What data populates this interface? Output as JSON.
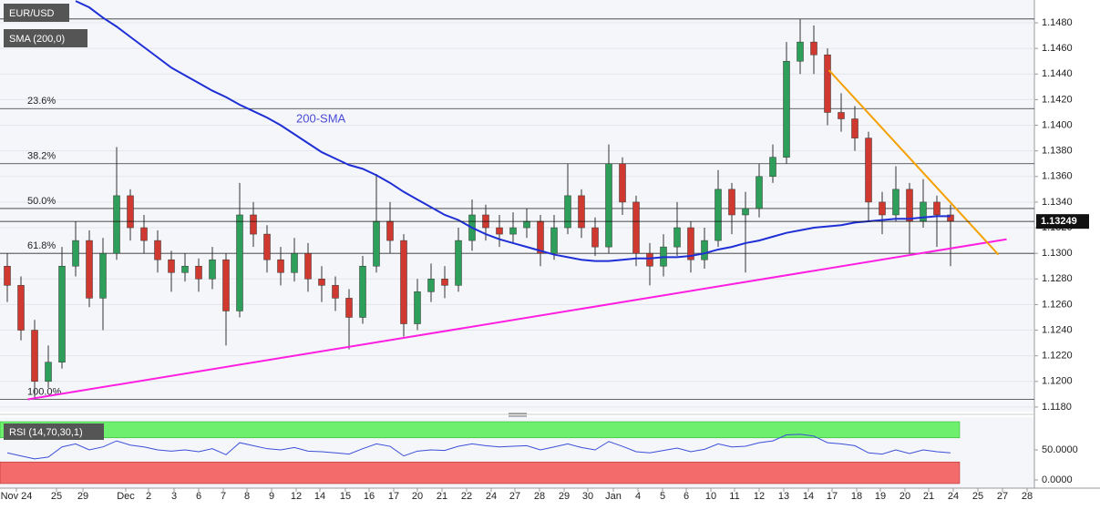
{
  "chart_data": {
    "type": "candlestick",
    "title": "EUR/USD",
    "indicator_label": "SMA (200,0)",
    "annotation": "200-SMA",
    "annotation_color": "#4b4bd6",
    "ylim": [
      1.11764,
      1.14978
    ],
    "yticks": [
      {
        "value": 1.118,
        "label": "1.1180"
      },
      {
        "value": 1.12,
        "label": "1.1200"
      },
      {
        "value": 1.122,
        "label": "1.1220"
      },
      {
        "value": 1.124,
        "label": "1.1240"
      },
      {
        "value": 1.126,
        "label": "1.1260"
      },
      {
        "value": 1.128,
        "label": "1.1280"
      },
      {
        "value": 1.13,
        "label": "1.1300"
      },
      {
        "value": 1.132,
        "label": "1.1320"
      },
      {
        "value": 1.134,
        "label": "1.1340"
      },
      {
        "value": 1.136,
        "label": "1.1360"
      },
      {
        "value": 1.138,
        "label": "1.1380"
      },
      {
        "value": 1.14,
        "label": "1.1400"
      },
      {
        "value": 1.142,
        "label": "1.1420"
      },
      {
        "value": 1.144,
        "label": "1.1440"
      },
      {
        "value": 1.146,
        "label": "1.1460"
      },
      {
        "value": 1.148,
        "label": "1.1480"
      }
    ],
    "grid": true,
    "x_labels": [
      "Nov 24",
      "25",
      "29",
      "Dec",
      "2",
      "3",
      "6",
      "7",
      "8",
      "9",
      "12",
      "14",
      "15",
      "16",
      "17",
      "20",
      "21",
      "22",
      "24",
      "27",
      "28",
      "29",
      "30",
      "Jan",
      "4",
      "5",
      "6",
      "10",
      "11",
      "12",
      "13",
      "14",
      "17",
      "18",
      "19",
      "20",
      "21",
      "24",
      "25",
      "27",
      "28"
    ],
    "up_color": "#2e9e5b",
    "down_color": "#d0392f",
    "open": [
      1.129,
      1.1275,
      1.124,
      1.12,
      1.1215,
      1.129,
      1.131,
      1.1265,
      1.13,
      1.1345,
      1.132,
      1.131,
      1.1295,
      1.1285,
      1.129,
      1.128,
      1.1295,
      1.1255,
      1.133,
      1.1315,
      1.1295,
      1.1285,
      1.13,
      1.128,
      1.1275,
      1.1265,
      1.125,
      1.129,
      1.1325,
      1.131,
      1.1245,
      1.127,
      1.128,
      1.1275,
      1.131,
      1.133,
      1.132,
      1.1315,
      1.132,
      1.1325,
      1.13,
      1.132,
      1.1345,
      1.132,
      1.1305,
      1.137,
      1.134,
      1.13,
      1.129,
      1.1305,
      1.132,
      1.1295,
      1.131,
      1.135,
      1.133,
      1.1335,
      1.136,
      1.1375,
      1.145,
      1.1465,
      1.1455,
      1.141,
      1.1405,
      1.139,
      1.134,
      1.133,
      1.135,
      1.1325,
      1.134,
      1.133
    ],
    "high": [
      1.13,
      1.1282,
      1.1248,
      1.1228,
      1.1305,
      1.1325,
      1.1318,
      1.1312,
      1.1383,
      1.135,
      1.133,
      1.1318,
      1.1302,
      1.13,
      1.1296,
      1.1305,
      1.13,
      1.1355,
      1.134,
      1.1322,
      1.1305,
      1.1312,
      1.1308,
      1.129,
      1.1282,
      1.1272,
      1.1298,
      1.1362,
      1.134,
      1.1315,
      1.128,
      1.1292,
      1.129,
      1.132,
      1.1342,
      1.1338,
      1.133,
      1.1332,
      1.1335,
      1.133,
      1.133,
      1.137,
      1.135,
      1.1328,
      1.1385,
      1.1375,
      1.1345,
      1.1308,
      1.1315,
      1.134,
      1.1325,
      1.132,
      1.1365,
      1.1355,
      1.1348,
      1.137,
      1.1385,
      1.1465,
      1.1483,
      1.1478,
      1.146,
      1.1425,
      1.1415,
      1.1395,
      1.1348,
      1.1368,
      1.1355,
      1.1358,
      1.1345,
      1.1338
    ],
    "low": [
      1.1262,
      1.1232,
      1.1187,
      1.1195,
      1.121,
      1.1282,
      1.1258,
      1.124,
      1.1295,
      1.131,
      1.13,
      1.1285,
      1.127,
      1.1278,
      1.127,
      1.1272,
      1.1228,
      1.125,
      1.1305,
      1.1285,
      1.1275,
      1.1278,
      1.127,
      1.1262,
      1.1255,
      1.1225,
      1.1245,
      1.1285,
      1.13,
      1.1235,
      1.124,
      1.1262,
      1.1265,
      1.127,
      1.1302,
      1.131,
      1.1305,
      1.1308,
      1.1312,
      1.129,
      1.1295,
      1.1315,
      1.1312,
      1.1298,
      1.13,
      1.133,
      1.129,
      1.1275,
      1.1282,
      1.1298,
      1.1285,
      1.1288,
      1.1305,
      1.1315,
      1.1285,
      1.1328,
      1.1355,
      1.137,
      1.144,
      1.144,
      1.14,
      1.1395,
      1.138,
      1.1325,
      1.1315,
      1.1325,
      1.13,
      1.132,
      1.1305,
      1.129
    ],
    "close": [
      1.1275,
      1.124,
      1.12,
      1.1215,
      1.129,
      1.131,
      1.1265,
      1.13,
      1.1345,
      1.132,
      1.131,
      1.1295,
      1.1285,
      1.129,
      1.128,
      1.1295,
      1.1255,
      1.133,
      1.1315,
      1.1295,
      1.1285,
      1.13,
      1.128,
      1.1275,
      1.1265,
      1.125,
      1.129,
      1.1325,
      1.131,
      1.1245,
      1.127,
      1.128,
      1.1275,
      1.131,
      1.133,
      1.132,
      1.1315,
      1.132,
      1.1325,
      1.13,
      1.132,
      1.1345,
      1.132,
      1.1305,
      1.137,
      1.134,
      1.13,
      1.129,
      1.1305,
      1.132,
      1.1295,
      1.131,
      1.135,
      1.133,
      1.1335,
      1.136,
      1.1375,
      1.145,
      1.1465,
      1.1455,
      1.141,
      1.1405,
      1.139,
      1.134,
      1.133,
      1.135,
      1.1325,
      1.134,
      1.133,
      1.1325
    ],
    "sma": {
      "name": "SMA (200,0)",
      "color": "#1f2fd6",
      "values": [
        null,
        null,
        null,
        null,
        null,
        1.1497,
        1.1492,
        1.1484,
        1.1477,
        1.1469,
        1.1461,
        1.1453,
        1.1445,
        1.1439,
        1.1433,
        1.1427,
        1.1422,
        1.1416,
        1.1411,
        1.1406,
        1.14,
        1.1393,
        1.1386,
        1.1379,
        1.1374,
        1.1369,
        1.1366,
        1.1361,
        1.1355,
        1.1348,
        1.1342,
        1.1336,
        1.133,
        1.1326,
        1.132,
        1.1315,
        1.1311,
        1.1308,
        1.1305,
        1.1302,
        1.1299,
        1.1297,
        1.1295,
        1.1294,
        1.1294,
        1.1295,
        1.1296,
        1.1296,
        1.1297,
        1.1297,
        1.1298,
        1.13,
        1.1303,
        1.1305,
        1.1308,
        1.131,
        1.1313,
        1.1316,
        1.1318,
        1.132,
        1.1321,
        1.1322,
        1.1324,
        1.1325,
        1.1326,
        1.1327,
        1.1327,
        1.1328,
        1.1329,
        1.1329
      ]
    },
    "levels": [
      1.1483,
      1.1413,
      1.137,
      1.1335,
      1.13,
      1.1186
    ],
    "level_labels": [
      null,
      "23.6%",
      "38.2%",
      "50.0%",
      "61.8%",
      "100.0%"
    ],
    "trendlines": [
      {
        "color": "#ff1fe0",
        "x": [
          1.5,
          73.1
        ],
        "values": [
          1.1186,
          1.1311
        ]
      },
      {
        "color": "#f5a000",
        "x": [
          60.1,
          72.5
        ],
        "values": [
          1.1443,
          1.1299
        ]
      }
    ],
    "last_price": 1.13249,
    "rsi": {
      "name": "RSI (14,70,30,1)",
      "color": "#3b4fd8",
      "ylim": [
        0,
        100
      ],
      "yticks": [
        {
          "value": 50,
          "label": "50.0000"
        },
        {
          "value": 0,
          "label": "0.0000"
        }
      ],
      "bands": [
        70,
        30
      ],
      "values": [
        45,
        40,
        35,
        38,
        55,
        60,
        50,
        55,
        65,
        58,
        55,
        50,
        48,
        50,
        47,
        52,
        42,
        62,
        57,
        52,
        50,
        54,
        48,
        47,
        45,
        43,
        52,
        60,
        56,
        40,
        48,
        50,
        49,
        56,
        60,
        57,
        55,
        56,
        57,
        50,
        55,
        60,
        54,
        50,
        64,
        56,
        47,
        45,
        49,
        53,
        47,
        51,
        60,
        55,
        56,
        62,
        65,
        75,
        76,
        73,
        62,
        60,
        57,
        45,
        43,
        50,
        44,
        50,
        47,
        45
      ]
    }
  }
}
